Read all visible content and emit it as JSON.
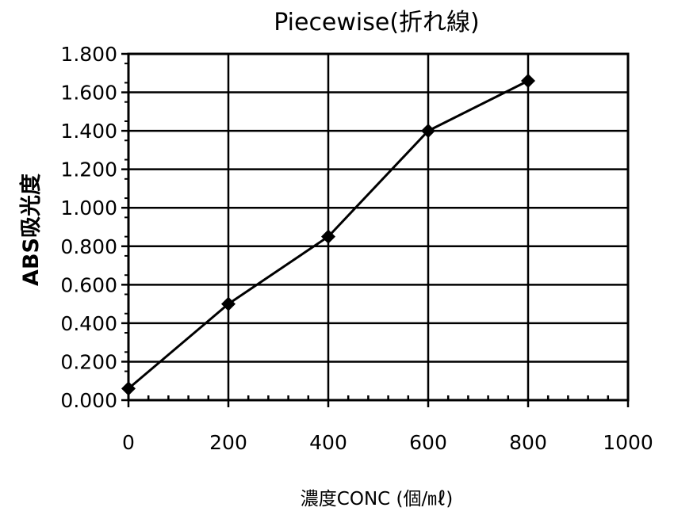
{
  "chart_data": {
    "type": "line",
    "title": "Piecewise(折れ線)",
    "xlabel": "濃度CONC (個/㎖)",
    "ylabel": "ABS吸光度",
    "xlim": [
      0,
      1000
    ],
    "ylim": [
      0,
      1.8
    ],
    "x_ticks": [
      "0",
      "200",
      "400",
      "600",
      "800",
      "1000"
    ],
    "y_ticks": [
      "0.000",
      "0.200",
      "0.400",
      "0.600",
      "0.800",
      "1.000",
      "1.200",
      "1.400",
      "1.600",
      "1.800"
    ],
    "grid": true,
    "legend": "none",
    "series": [
      {
        "x": [
          0,
          200,
          400,
          600,
          800
        ],
        "values": [
          0.06,
          0.5,
          0.85,
          1.4,
          1.66
        ],
        "color": "#000000",
        "marker": "diamond"
      }
    ]
  }
}
